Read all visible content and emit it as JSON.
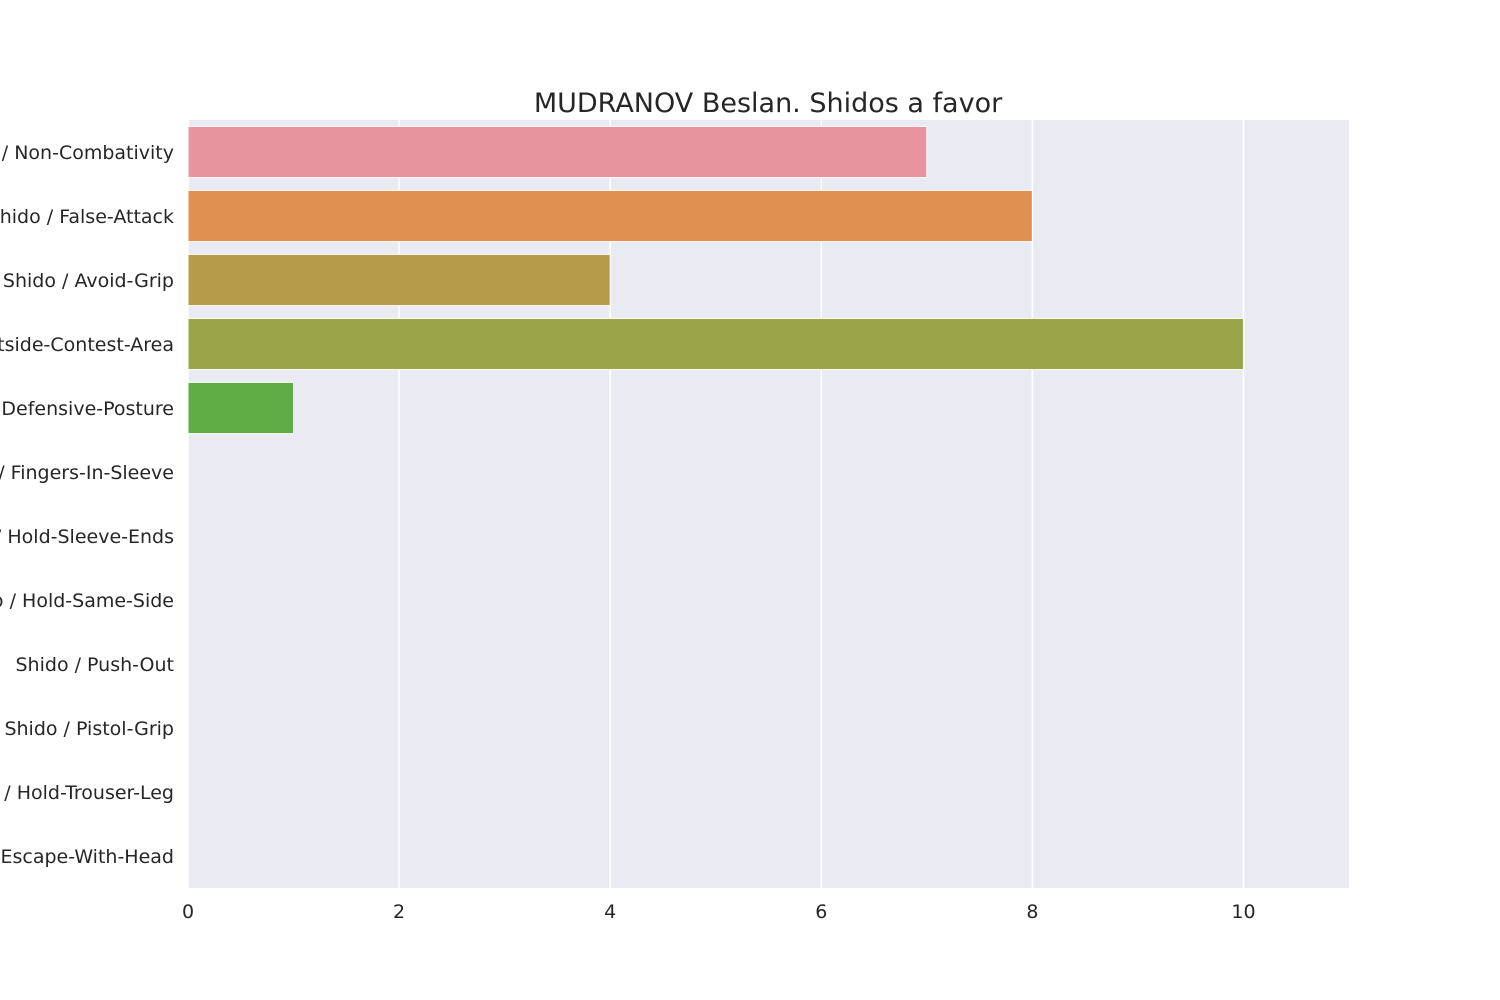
{
  "chart_data": {
    "type": "bar",
    "orientation": "horizontal",
    "title": "MUDRANOV Beslan. Shidos a favor",
    "xlabel": "",
    "ylabel": "",
    "categories": [
      "Shido / Non-Combativity",
      "Shido / False-Attack",
      "Shido / Avoid-Grip",
      "Shido / Outside-Contest-Area",
      "Shido / Defensive-Posture",
      "Shido / Fingers-In-Sleeve",
      "Shido / Hold-Sleeve-Ends",
      "Shido / Hold-Same-Side",
      "Shido / Push-Out",
      "Shido / Pistol-Grip",
      "Shido / Hold-Trouser-Leg",
      "Shido / Escape-With-Head"
    ],
    "values": [
      7,
      8,
      4,
      10,
      1,
      0,
      0,
      0,
      0,
      0,
      0,
      0
    ],
    "xlim": [
      0,
      11
    ],
    "xticks": [
      0,
      2,
      4,
      6,
      8,
      10
    ],
    "grid": true,
    "legend": "none",
    "colors": [
      "#e8949f",
      "#e09151",
      "#b69c4a",
      "#9aa449",
      "#60ad46",
      "#4eb068",
      "#52ad9b",
      "#54aab6",
      "#5aa6cc",
      "#8f9ee8",
      "#c98de8",
      "#e686c9"
    ],
    "background": "#eaeaf2",
    "grid_color": "#ffffff"
  }
}
